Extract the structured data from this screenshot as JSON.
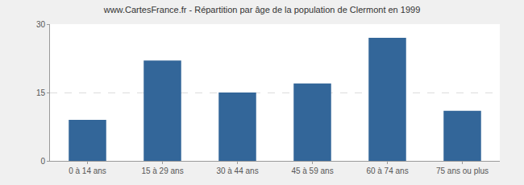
{
  "chart_data": {
    "type": "bar",
    "title": "www.CartesFrance.fr - Répartition par âge de la population de Clermont en 1999",
    "categories": [
      "0 à 14 ans",
      "15 à 29 ans",
      "30 à 44 ans",
      "45 à 59 ans",
      "60 à 74 ans",
      "75 ans ou plus"
    ],
    "values": [
      9,
      22,
      15,
      17,
      27,
      11
    ],
    "color": "#336699",
    "ylim": [
      0,
      30
    ],
    "yticks": [
      0,
      15,
      30
    ],
    "grid": true
  }
}
